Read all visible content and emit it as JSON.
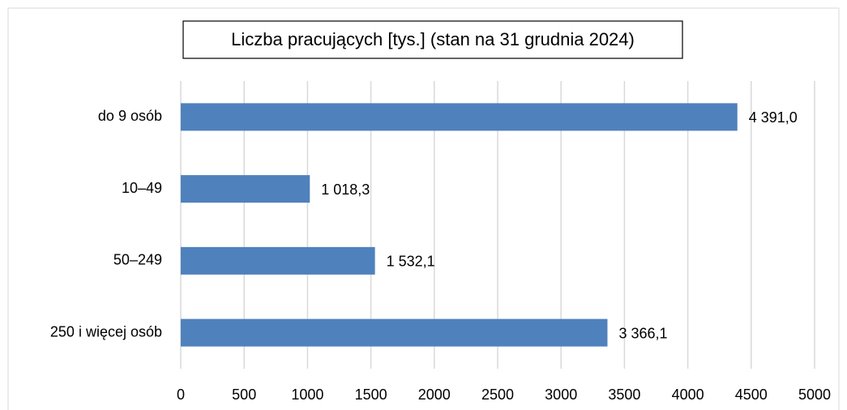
{
  "chart_data": {
    "type": "barh",
    "title": "Liczba pracujących [tys.] (stan na 31 grudnia 2024)",
    "categories": [
      "do 9 osób",
      "10–49",
      "50–249",
      "250 i więcej  osób"
    ],
    "values": [
      4391.0,
      1018.3,
      1532.1,
      3366.1
    ],
    "value_labels": [
      "4 391,0",
      "1 018,3",
      "1 532,1",
      "3 366,1"
    ],
    "color": "#4f81bd",
    "xlim": [
      0,
      5000
    ],
    "xticks": [
      0,
      500,
      1000,
      1500,
      2000,
      2500,
      3000,
      3500,
      4000,
      4500,
      5000
    ],
    "grid": true
  }
}
